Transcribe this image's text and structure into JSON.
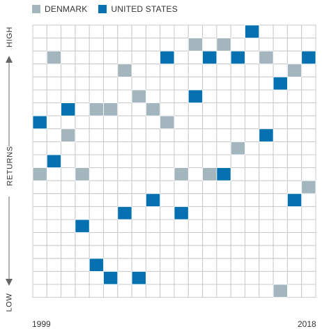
{
  "chart_data": {
    "type": "heatmap",
    "legend": [
      {
        "name": "DENMARK",
        "color": "#a3b5bd"
      },
      {
        "name": "UNITED STATES",
        "color": "#0571b0"
      }
    ],
    "y_axis": {
      "high_label": "HIGH",
      "mid_label": "RETURNS",
      "low_label": "LOW"
    },
    "x_ticks": [
      "1999",
      "2018"
    ],
    "years": [
      1999,
      2000,
      2001,
      2002,
      2003,
      2004,
      2005,
      2006,
      2007,
      2008,
      2009,
      2010,
      2011,
      2012,
      2013,
      2014,
      2015,
      2016,
      2017,
      2018
    ],
    "rank_rows": 21,
    "note": "rank 1 = highest return (top row), 21 = lowest",
    "series": [
      {
        "name": "DENMARK",
        "ranks": [
          12,
          3,
          9,
          12,
          7,
          7,
          4,
          6,
          7,
          8,
          12,
          2,
          12,
          2,
          10,
          1,
          3,
          21,
          4,
          13
        ]
      },
      {
        "name": "UNITED STATES",
        "ranks": [
          8,
          11,
          7,
          16,
          19,
          20,
          15,
          20,
          14,
          3,
          15,
          6,
          3,
          12,
          3,
          1,
          9,
          5,
          14,
          3
        ]
      }
    ]
  }
}
